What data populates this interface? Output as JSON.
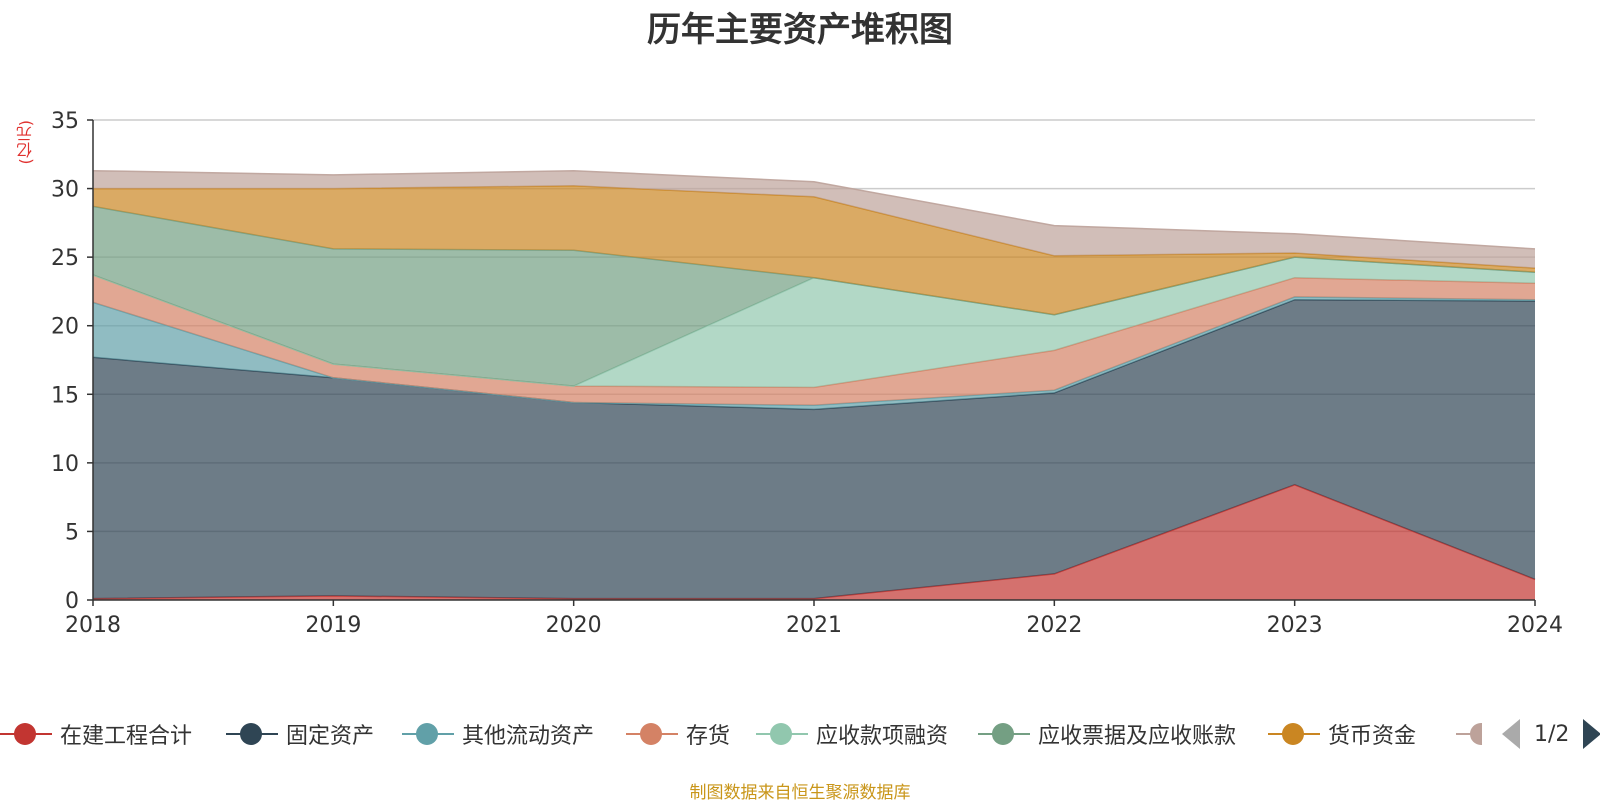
{
  "chart_data": {
    "type": "area",
    "title": "历年主要资产堆积图",
    "unit_label": "(亿元)",
    "source": "制图数据来自恒生聚源数据库",
    "stacked": true,
    "x": [
      "2018",
      "2019",
      "2020",
      "2021",
      "2022",
      "2023",
      "2024"
    ],
    "ylim": [
      0,
      35
    ],
    "yticks": [
      0,
      5,
      10,
      15,
      20,
      25,
      30,
      35
    ],
    "grid": true,
    "series": [
      {
        "name": "在建工程合计",
        "color": "#c23531",
        "values": [
          0.1,
          0.3,
          0.1,
          0.1,
          1.9,
          8.4,
          1.5
        ]
      },
      {
        "name": "固定资产",
        "color": "#2f4554",
        "values": [
          17.6,
          15.9,
          14.3,
          13.8,
          13.2,
          13.5,
          20.3
        ]
      },
      {
        "name": "其他流动资产",
        "color": "#61a0a8",
        "values": [
          4.0,
          0.0,
          0.0,
          0.3,
          0.2,
          0.2,
          0.1
        ]
      },
      {
        "name": "存货",
        "color": "#d48265",
        "values": [
          2.0,
          1.0,
          1.2,
          1.3,
          2.9,
          1.4,
          1.2
        ]
      },
      {
        "name": "应收款项融资",
        "color": "#91c7ae",
        "values": [
          0.0,
          0.0,
          0.0,
          8.0,
          2.6,
          1.5,
          0.8
        ]
      },
      {
        "name": "应收票据及应收账款",
        "color": "#749f83",
        "values": [
          5.0,
          8.4,
          9.9,
          0.0,
          0.0,
          0.0,
          0.0
        ]
      },
      {
        "name": "货币资金",
        "color": "#ca8622",
        "values": [
          1.3,
          4.4,
          4.7,
          5.9,
          4.3,
          0.3,
          0.3
        ]
      },
      {
        "name": "",
        "color": "#bda29a",
        "values": [
          1.3,
          1.0,
          1.1,
          1.1,
          2.2,
          1.4,
          1.4
        ]
      }
    ],
    "legend": {
      "position": "bottom",
      "page": "1/2"
    }
  }
}
